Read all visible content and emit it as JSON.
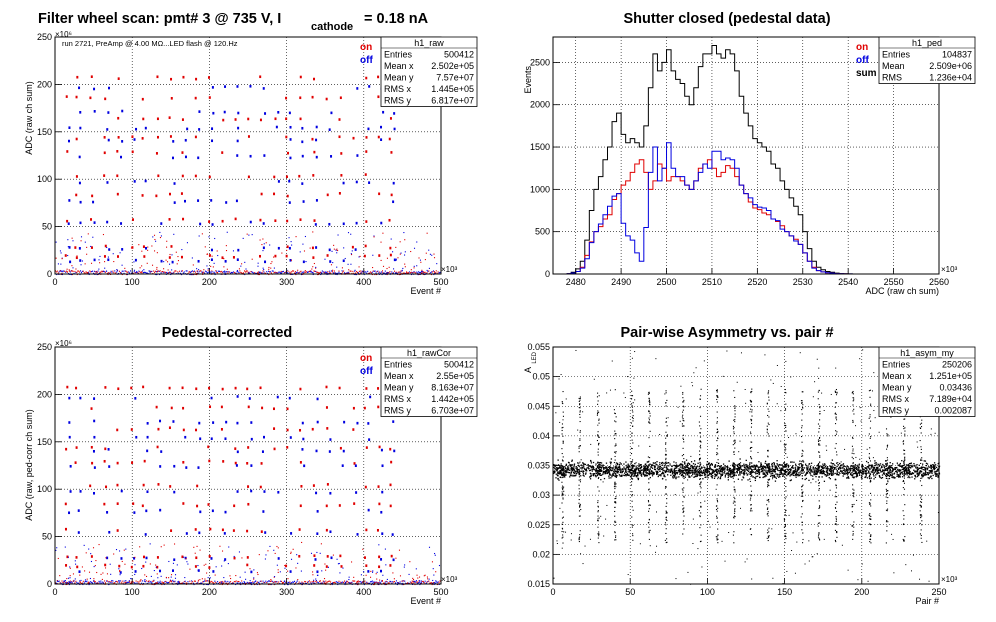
{
  "colors": {
    "on": "#e00000",
    "off": "#0000e0",
    "sum": "#000000",
    "frame": "#000000"
  },
  "chart_data": [
    {
      "type": "scatter",
      "title": "Filter wheel scan: pmt#   3 @   735 V, I",
      "title_subscript": "cathode",
      "title_tail": "= 0.18 nA",
      "subtitle": "run 2721, PreAmp @ 4.00 MΩ...LED flash @  120.Hz",
      "xlabel": "Event #",
      "ylabel": "ADC (raw ch sum)",
      "x_exponent": "×10³",
      "y_exponent": "×10⁶",
      "xlim": [
        0,
        500
      ],
      "ylim": [
        0,
        250
      ],
      "xticks": [
        "0",
        "100",
        "200",
        "300",
        "400",
        "500"
      ],
      "yticks": [
        "0",
        "50",
        "100",
        "150",
        "200",
        "250"
      ],
      "grid": true,
      "legend": [
        "on",
        "off"
      ],
      "stats": {
        "name": "h1_raw",
        "rows": [
          {
            "label": "Entries",
            "value": "500412"
          },
          {
            "label": "Mean x",
            "value": "2.502e+05"
          },
          {
            "label": "Mean y",
            "value": "7.57e+07"
          },
          {
            "label": "RMS x",
            "value": "1.445e+05"
          },
          {
            "label": "RMS y",
            "value": "6.817e+07"
          }
        ]
      },
      "levels": {
        "on": [
          208,
          187,
          165,
          145,
          130,
          105,
          85,
          58,
          30,
          20
        ],
        "off": [
          198,
          172,
          155,
          142,
          125,
          98,
          78,
          55,
          28,
          15
        ]
      },
      "x_positions": [
        12,
        25,
        44,
        62,
        79,
        97,
        112,
        130,
        147,
        163,
        180,
        197,
        214,
        230,
        247,
        264,
        282,
        298,
        315,
        332,
        350,
        367,
        384,
        400,
        417,
        432
      ]
    },
    {
      "type": "line",
      "title": "Shutter closed (pedestal data)",
      "xlabel": "ADC (raw ch sum)",
      "ylabel": "Events",
      "x_exponent": "×10³",
      "xlim": [
        2475,
        2560
      ],
      "ylim": [
        0,
        2800
      ],
      "xticks": [
        "2480",
        "2490",
        "2500",
        "2510",
        "2520",
        "2530",
        "2540",
        "2550",
        "2560"
      ],
      "yticks": [
        "0",
        "500",
        "1000",
        "1500",
        "2000",
        "2500"
      ],
      "grid": true,
      "legend": [
        "on",
        "off",
        "sum"
      ],
      "stats": {
        "name": "h1_ped",
        "rows": [
          {
            "label": "Entries",
            "value": "104837"
          },
          {
            "label": "Mean",
            "value": "2.509e+06"
          },
          {
            "label": "RMS",
            "value": "1.236e+04"
          }
        ]
      },
      "bin_start": 2478,
      "bin_width": 1,
      "series": [
        {
          "name": "sum",
          "values": [
            5,
            20,
            60,
            150,
            400,
            750,
            1000,
            1150,
            1350,
            1500,
            1800,
            1900,
            1650,
            1550,
            1600,
            1550,
            1500,
            1750,
            2200,
            2600,
            2400,
            2500,
            2650,
            2400,
            2300,
            2250,
            2100,
            2000,
            2200,
            2450,
            2600,
            2600,
            2700,
            2600,
            2550,
            2650,
            2600,
            2400,
            2100,
            1900,
            1750,
            1600,
            1550,
            1500,
            1450,
            1300,
            1250,
            1100,
            1000,
            900,
            800,
            700,
            500,
            300,
            150,
            80,
            50,
            30,
            20,
            10,
            5,
            3,
            1
          ]
        },
        {
          "name": "on",
          "values": [
            2,
            8,
            30,
            80,
            220,
            380,
            500,
            560,
            650,
            700,
            880,
            950,
            1050,
            1100,
            1200,
            1300,
            1350,
            1200,
            1000,
            1100,
            1300,
            1250,
            1100,
            1150,
            1150,
            1100,
            1050,
            1000,
            1100,
            1250,
            1300,
            1350,
            1250,
            1150,
            1200,
            1280,
            1250,
            1150,
            1050,
            950,
            850,
            780,
            760,
            720,
            700,
            650,
            620,
            570,
            500,
            450,
            410,
            350,
            250,
            150,
            80,
            40,
            25,
            15,
            10,
            5,
            2,
            1,
            0
          ]
        },
        {
          "name": "off",
          "values": [
            3,
            12,
            30,
            70,
            180,
            370,
            500,
            590,
            700,
            800,
            920,
            950,
            600,
            450,
            400,
            250,
            150,
            550,
            1200,
            1500,
            1100,
            1250,
            1550,
            1250,
            1150,
            1150,
            1050,
            1000,
            1100,
            1200,
            1300,
            1250,
            1450,
            1450,
            1350,
            1370,
            1350,
            1250,
            1050,
            950,
            900,
            820,
            790,
            780,
            750,
            650,
            630,
            530,
            500,
            450,
            390,
            350,
            250,
            150,
            70,
            40,
            25,
            15,
            10,
            5,
            3,
            2,
            1
          ]
        }
      ]
    },
    {
      "type": "scatter",
      "title": "Pedestal-corrected",
      "xlabel": "Event #",
      "ylabel": "ADC (raw, ped-corr ch sum)",
      "x_exponent": "×10³",
      "y_exponent": "×10⁶",
      "xlim": [
        0,
        500
      ],
      "ylim": [
        0,
        250
      ],
      "xticks": [
        "0",
        "100",
        "200",
        "300",
        "400",
        "500"
      ],
      "yticks": [
        "0",
        "50",
        "100",
        "150",
        "200",
        "250"
      ],
      "grid": true,
      "legend": [
        "on",
        "off"
      ],
      "stats": {
        "name": "h1_rawCor",
        "rows": [
          {
            "label": "Entries",
            "value": "500412"
          },
          {
            "label": "Mean x",
            "value": "2.55e+05"
          },
          {
            "label": "Mean y",
            "value": "8.163e+07"
          },
          {
            "label": "RMS x",
            "value": "1.442e+05"
          },
          {
            "label": "RMS y",
            "value": "6.703e+07"
          }
        ]
      },
      "levels": {
        "on": [
          208,
          187,
          165,
          145,
          130,
          105,
          85,
          58,
          30,
          20
        ],
        "off": [
          198,
          172,
          155,
          142,
          125,
          98,
          78,
          55,
          28,
          15
        ]
      },
      "x_positions": [
        12,
        25,
        44,
        62,
        79,
        97,
        112,
        130,
        147,
        163,
        180,
        197,
        214,
        230,
        247,
        264,
        282,
        298,
        315,
        332,
        350,
        367,
        384,
        400,
        417,
        432
      ]
    },
    {
      "type": "scatter",
      "title": "Pair-wise Asymmetry vs. pair #",
      "xlabel": "Pair #",
      "ylabel": "A",
      "ylabel_subscript": "LED",
      "x_exponent": "×10³",
      "xlim": [
        0,
        250
      ],
      "ylim": [
        0.015,
        0.055
      ],
      "xticks": [
        "0",
        "50",
        "100",
        "150",
        "200",
        "250"
      ],
      "yticks": [
        "0.015",
        "0.02",
        "0.025",
        "0.03",
        "0.035",
        "0.04",
        "0.045",
        "0.05",
        "0.055"
      ],
      "grid": true,
      "stats": {
        "name": "h1_asym_my",
        "rows": [
          {
            "label": "Entries",
            "value": "250206"
          },
          {
            "label": "Mean x",
            "value": "1.251e+05"
          },
          {
            "label": "Mean y",
            "value": "0.03436"
          },
          {
            "label": "RMS x",
            "value": "7.189e+04"
          },
          {
            "label": "RMS y",
            "value": "0.002087"
          }
        ]
      },
      "band": {
        "center": 0.0343,
        "halfwidth": 0.0012
      },
      "spike_x": [
        6,
        17,
        29,
        40,
        51,
        62,
        73,
        84,
        95,
        106,
        117,
        128,
        139,
        150,
        161,
        172,
        183,
        194,
        205,
        216,
        227,
        238
      ],
      "spike_range": [
        0.022,
        0.048
      ]
    }
  ]
}
